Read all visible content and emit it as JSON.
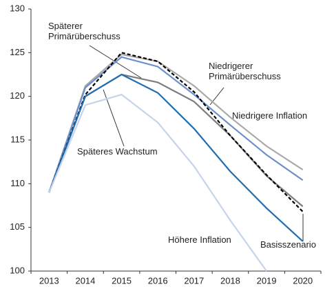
{
  "chart_data": {
    "type": "line",
    "categories": [
      "2013",
      "2014",
      "2015",
      "2016",
      "2017",
      "2018",
      "2019",
      "2020"
    ],
    "ylim": [
      100,
      130
    ],
    "yticks": [
      100,
      105,
      110,
      115,
      120,
      125,
      130
    ],
    "grid": false,
    "series": [
      {
        "name": "Niedrigere Inflation",
        "color": "#a9a9a9",
        "values": [
          109,
          121.2,
          124.8,
          124,
          121.2,
          117.6,
          114.3,
          111.6
        ]
      },
      {
        "name": "Niedrigerer Primärüberschuss",
        "color": "#6b8fcc",
        "values": [
          109,
          121,
          124.5,
          123.4,
          120.2,
          116.7,
          113.3,
          110.4
        ]
      },
      {
        "name": "Späterer Primärüberschuss",
        "color": "#7d7d7d",
        "values": [
          109,
          120,
          122.5,
          121.6,
          119.4,
          115.5,
          110.9,
          107.4
        ]
      },
      {
        "name": "Basisszenario",
        "color": "#000000",
        "dashed": true,
        "values": [
          109,
          120.2,
          125,
          124,
          120.5,
          115.5,
          111,
          106.8
        ]
      },
      {
        "name": "Späteres Wachstum",
        "color": "#1f6db3",
        "values": [
          109,
          120,
          122.5,
          120.4,
          116.3,
          111.4,
          107.2,
          103.4
        ]
      },
      {
        "name": "Höhere Inflation",
        "color": "#c6d4ea",
        "values": [
          109,
          119,
          120.2,
          117,
          112,
          105.8,
          100,
          null
        ]
      }
    ]
  }
}
